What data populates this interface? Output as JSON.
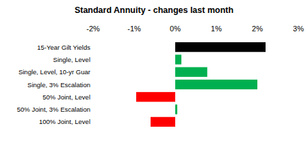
{
  "chart_data": {
    "type": "bar",
    "orientation": "horizontal",
    "title": "Standard Annuity - changes last month",
    "categories": [
      "15-Year Gilt Yields",
      "Single, Level",
      "Single, Level, 10-yr Guar",
      "Single, 3% Escalation",
      "50% Joint, Level",
      "50% Joint, 3% Escalation",
      "100% Joint, Level"
    ],
    "values": [
      2.2,
      0.15,
      0.78,
      2.0,
      -0.95,
      0.05,
      -0.6
    ],
    "colors": [
      "#000000",
      "#00b050",
      "#00b050",
      "#00b050",
      "#ff0000",
      "#00b050",
      "#ff0000"
    ],
    "xlim": [
      -2,
      3
    ],
    "xticks": [
      {
        "value": -2,
        "label": "-2%"
      },
      {
        "value": -1,
        "label": "-1%"
      },
      {
        "value": 0,
        "label": "0%"
      },
      {
        "value": 1,
        "label": "1%"
      },
      {
        "value": 2,
        "label": "2%"
      },
      {
        "value": 3,
        "label": "3%"
      }
    ],
    "grid": false
  }
}
